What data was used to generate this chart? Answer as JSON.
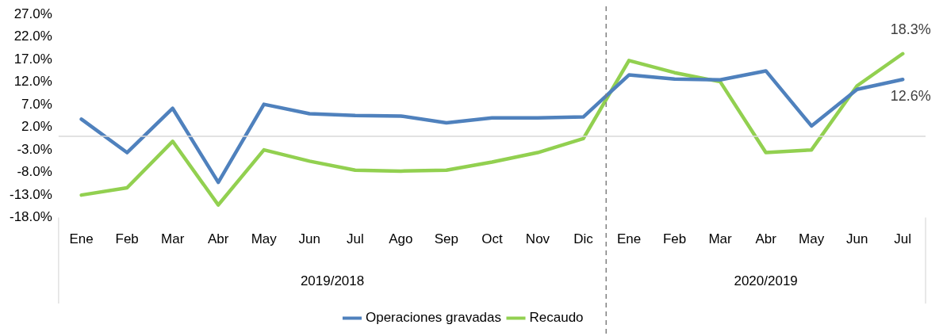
{
  "chart_data": {
    "type": "line",
    "categories": [
      "Ene",
      "Feb",
      "Mar",
      "Abr",
      "May",
      "Jun",
      "Jul",
      "Ago",
      "Sep",
      "Oct",
      "Nov",
      "Dic",
      "Ene",
      "Feb",
      "Mar",
      "Abr",
      "May",
      "Jun",
      "Jul"
    ],
    "series": [
      {
        "name": "Operaciones gravadas",
        "color": "#4f81bd",
        "values": [
          3.8,
          -3.6,
          6.2,
          -10.2,
          7.1,
          5.0,
          4.6,
          4.5,
          3.0,
          4.1,
          4.1,
          4.3,
          13.6,
          12.7,
          12.5,
          14.5,
          2.3,
          10.4,
          12.6
        ],
        "value_labels": [
          null,
          null,
          null,
          null,
          null,
          null,
          null,
          null,
          null,
          null,
          null,
          null,
          null,
          null,
          null,
          null,
          null,
          null,
          "12.6%"
        ]
      },
      {
        "name": "Recaudo",
        "color": "#92d050",
        "values": [
          -13.0,
          -11.4,
          -1.1,
          -15.2,
          -3.0,
          -5.5,
          -7.5,
          -7.7,
          -7.5,
          -5.7,
          -3.6,
          -0.5,
          16.8,
          14.1,
          12.1,
          -3.6,
          -3.0,
          11.2,
          18.3
        ],
        "value_labels": [
          null,
          null,
          null,
          null,
          null,
          null,
          null,
          null,
          null,
          null,
          null,
          null,
          null,
          null,
          null,
          null,
          null,
          null,
          "18.3%"
        ]
      }
    ],
    "ylim": [
      -18,
      27
    ],
    "yticks": [
      {
        "value": -18,
        "label": "-18.0%"
      },
      {
        "value": -13,
        "label": "-13.0%"
      },
      {
        "value": -8,
        "label": "-8.0%"
      },
      {
        "value": -3,
        "label": "-3.0%"
      },
      {
        "value": 2,
        "label": "2.0%"
      },
      {
        "value": 7,
        "label": "7.0%"
      },
      {
        "value": 12,
        "label": "12.0%"
      },
      {
        "value": 17,
        "label": "17.0%"
      },
      {
        "value": 22,
        "label": "22.0%"
      },
      {
        "value": 27,
        "label": "27.0%"
      }
    ],
    "annotations": [
      "2019/2018",
      "2020/2019"
    ],
    "grid": false,
    "legend": "bottom",
    "marker": "none",
    "line_style": "solid"
  }
}
